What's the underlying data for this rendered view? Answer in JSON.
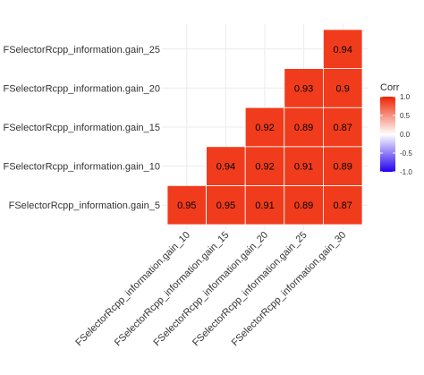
{
  "chart_data": {
    "type": "heatmap",
    "x_categories": [
      "FSelectorRcpp_information.gain_10",
      "FSelectorRcpp_information.gain_15",
      "FSelectorRcpp_information.gain_20",
      "FSelectorRcpp_information.gain_25",
      "FSelectorRcpp_information.gain_30"
    ],
    "y_categories": [
      "FSelectorRcpp_information.gain_5",
      "FSelectorRcpp_information.gain_10",
      "FSelectorRcpp_information.gain_15",
      "FSelectorRcpp_information.gain_20",
      "FSelectorRcpp_information.gain_25"
    ],
    "cells": [
      {
        "x": "FSelectorRcpp_information.gain_10",
        "y": "FSelectorRcpp_information.gain_5",
        "value": 0.95
      },
      {
        "x": "FSelectorRcpp_information.gain_15",
        "y": "FSelectorRcpp_information.gain_5",
        "value": 0.95
      },
      {
        "x": "FSelectorRcpp_information.gain_20",
        "y": "FSelectorRcpp_information.gain_5",
        "value": 0.91
      },
      {
        "x": "FSelectorRcpp_information.gain_25",
        "y": "FSelectorRcpp_information.gain_5",
        "value": 0.89
      },
      {
        "x": "FSelectorRcpp_information.gain_30",
        "y": "FSelectorRcpp_information.gain_5",
        "value": 0.87
      },
      {
        "x": "FSelectorRcpp_information.gain_15",
        "y": "FSelectorRcpp_information.gain_10",
        "value": 0.94
      },
      {
        "x": "FSelectorRcpp_information.gain_20",
        "y": "FSelectorRcpp_information.gain_10",
        "value": 0.92
      },
      {
        "x": "FSelectorRcpp_information.gain_25",
        "y": "FSelectorRcpp_information.gain_10",
        "value": 0.91
      },
      {
        "x": "FSelectorRcpp_information.gain_30",
        "y": "FSelectorRcpp_information.gain_10",
        "value": 0.89
      },
      {
        "x": "FSelectorRcpp_information.gain_20",
        "y": "FSelectorRcpp_information.gain_15",
        "value": 0.92
      },
      {
        "x": "FSelectorRcpp_information.gain_25",
        "y": "FSelectorRcpp_information.gain_15",
        "value": 0.89
      },
      {
        "x": "FSelectorRcpp_information.gain_30",
        "y": "FSelectorRcpp_information.gain_15",
        "value": 0.87
      },
      {
        "x": "FSelectorRcpp_information.gain_25",
        "y": "FSelectorRcpp_information.gain_20",
        "value": 0.93
      },
      {
        "x": "FSelectorRcpp_information.gain_30",
        "y": "FSelectorRcpp_information.gain_20",
        "value": 0.9
      },
      {
        "x": "FSelectorRcpp_information.gain_30",
        "y": "FSelectorRcpp_information.gain_25",
        "value": 0.94
      }
    ],
    "legend": {
      "title": "Corr",
      "position": "right",
      "ticks": [
        "1.0",
        "0.5",
        "0.0",
        "-0.5",
        "-1.0"
      ],
      "range": [
        -1,
        1
      ],
      "colors": {
        "low": "#2200ee",
        "mid": "#ffffff",
        "high": "#ee2200"
      }
    },
    "cell_color": "#f03c1c",
    "grid": true
  }
}
